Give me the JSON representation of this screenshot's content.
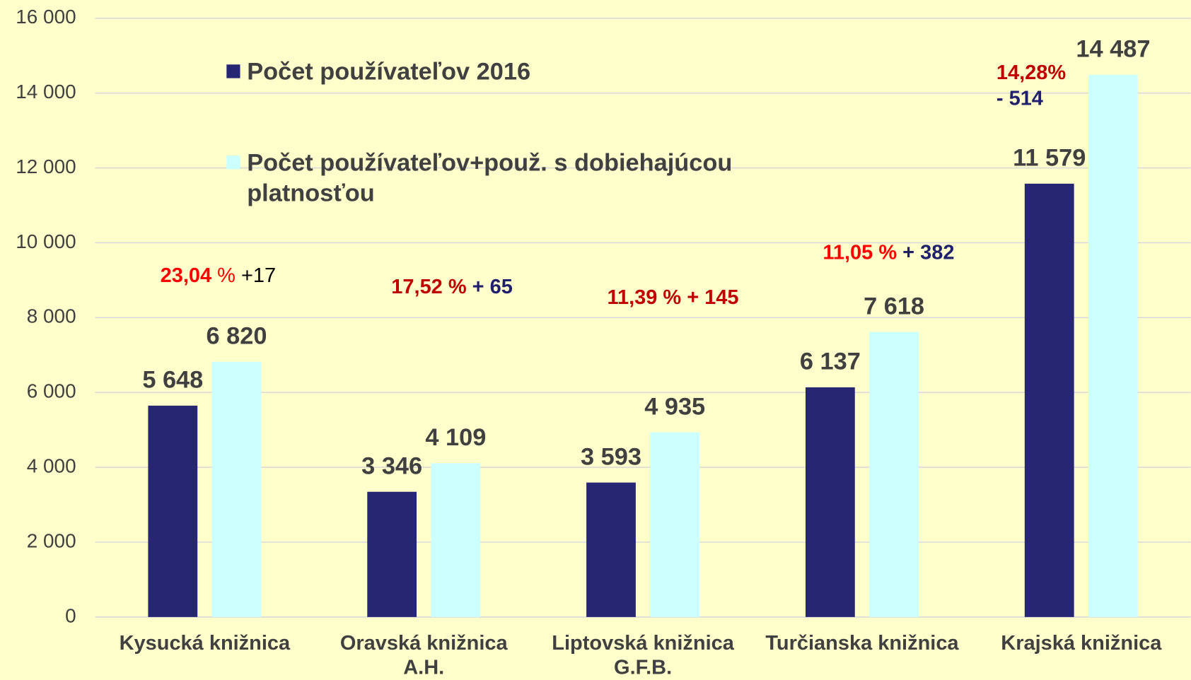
{
  "chart_data": {
    "type": "bar",
    "categories": [
      [
        "Kysucká knižnica"
      ],
      [
        "Oravská knižnica",
        "A.H."
      ],
      [
        "Liptovská knižnica",
        "G.F.B."
      ],
      [
        "Turčianska knižnica"
      ],
      [
        "Krajská knižnica"
      ]
    ],
    "series": [
      {
        "name": "Počet používateľov 2016",
        "color": "#262673",
        "values": [
          5648,
          3346,
          3593,
          6137,
          11579
        ],
        "value_labels": [
          "5 648",
          "3 346",
          "3 593",
          "6 137",
          "11 579"
        ]
      },
      {
        "name": "Počet používateľov+použ. s dobiehajúcou platnosťou",
        "color": "#ccffff",
        "values": [
          6820,
          4109,
          4935,
          7618,
          14487
        ],
        "value_labels": [
          "6 820",
          "4 109",
          "4 935",
          "7 618",
          "14 487"
        ]
      }
    ],
    "annotations": [
      {
        "percent": "23,04",
        "unit": " %",
        "change": " +17",
        "percent_color": "#ff0000",
        "change_color": "#000000"
      },
      {
        "percent": "17,52 %",
        "change": " + 65",
        "percent_color": "#c00000",
        "change_color": "#1f1f6e"
      },
      {
        "percent": "11,39 % + 145",
        "percent_color": "#c00000"
      },
      {
        "percent": "11,05 %",
        "change": " + 382",
        "percent_color": "#ff0000",
        "change_color": "#1f1f6e"
      },
      {
        "percent": "14,28%",
        "change": "- 514",
        "percent_color": "#c00000",
        "change_color": "#1f1f6e"
      }
    ],
    "ylim": [
      0,
      16000
    ],
    "yticks": [
      0,
      {
        "value": 2000,
        "label": "2 000"
      },
      {
        "value": 4000,
        "label": "4 000"
      },
      {
        "value": 6000,
        "label": "6 000"
      },
      {
        "value": 8000,
        "label": "8 000"
      },
      {
        "value": 10000,
        "label": "10 000"
      },
      {
        "value": 12000,
        "label": "12 000"
      },
      {
        "value": 14000,
        "label": "14 000"
      },
      {
        "value": 16000,
        "label": "16 000"
      }
    ],
    "grid": true
  }
}
